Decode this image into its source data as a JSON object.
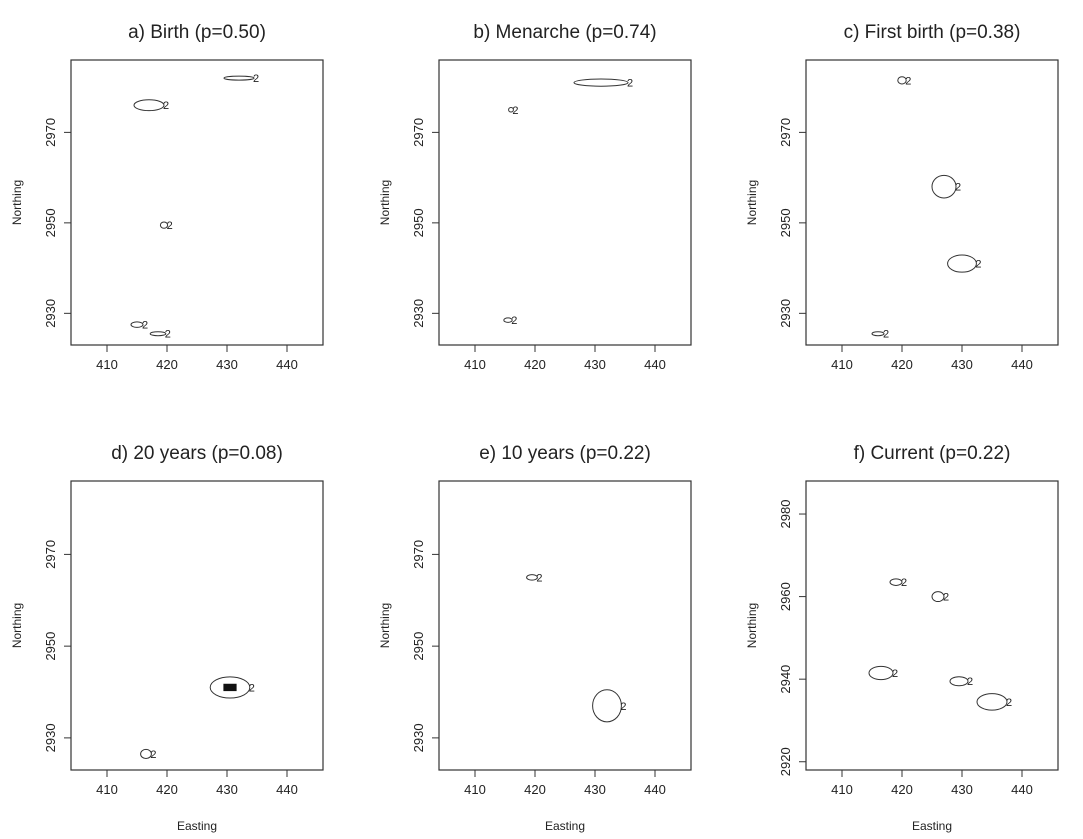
{
  "figure": {
    "background": "#ffffff",
    "line_color": "#333333"
  },
  "chart_data": [
    {
      "type": "contour",
      "title": "a) Birth (p=0.50)",
      "xlabel": "",
      "ylabel": "Northing",
      "xlim": [
        404,
        446
      ],
      "ylim": [
        2923,
        2986
      ],
      "xticks": [
        410,
        420,
        430,
        440
      ],
      "yticks": [
        2930,
        2950,
        2970
      ],
      "contour_label": "2",
      "contours": [
        {
          "center": [
            417,
            2976
          ],
          "rx": 2.5,
          "ry": 1.2,
          "fill": false
        },
        {
          "center": [
            432,
            2982
          ],
          "rx": 2.5,
          "ry": 0.4,
          "fill": false
        },
        {
          "center": [
            419.5,
            2949.5
          ],
          "rx": 0.6,
          "ry": 0.7,
          "fill": false
        },
        {
          "center": [
            415,
            2927.5
          ],
          "rx": 1.0,
          "ry": 0.6,
          "fill": false
        },
        {
          "center": [
            418.5,
            2925.5
          ],
          "rx": 1.3,
          "ry": 0.35,
          "fill": false
        }
      ]
    },
    {
      "type": "contour",
      "title": "b) Menarche (p=0.74)",
      "xlabel": "",
      "ylabel": "Northing",
      "xlim": [
        404,
        446
      ],
      "ylim": [
        2923,
        2986
      ],
      "xticks": [
        410,
        420,
        430,
        440
      ],
      "yticks": [
        2930,
        2950,
        2970
      ],
      "contour_label": "2",
      "contours": [
        {
          "center": [
            431,
            2981
          ],
          "rx": 4.5,
          "ry": 0.8,
          "fill": false
        },
        {
          "center": [
            416,
            2975
          ],
          "rx": 0.4,
          "ry": 0.5,
          "fill": false
        },
        {
          "center": [
            415.5,
            2928.5
          ],
          "rx": 0.7,
          "ry": 0.5,
          "fill": false
        }
      ]
    },
    {
      "type": "contour",
      "title": "c) First birth (p=0.38)",
      "xlabel": "",
      "ylabel": "Northing",
      "xlim": [
        404,
        446
      ],
      "ylim": [
        2923,
        2986
      ],
      "xticks": [
        410,
        420,
        430,
        440
      ],
      "yticks": [
        2930,
        2950,
        2970
      ],
      "contour_label": "2",
      "contours": [
        {
          "center": [
            420,
            2981.5
          ],
          "rx": 0.7,
          "ry": 0.8,
          "fill": false
        },
        {
          "center": [
            427,
            2958
          ],
          "rx": 2.0,
          "ry": 2.5,
          "fill": false
        },
        {
          "center": [
            430,
            2941
          ],
          "rx": 2.4,
          "ry": 1.9,
          "fill": false
        },
        {
          "center": [
            416,
            2925.5
          ],
          "rx": 1.0,
          "ry": 0.4,
          "fill": false
        }
      ]
    },
    {
      "type": "contour",
      "title": "d) 20 years (p=0.08)",
      "xlabel": "Easting",
      "ylabel": "Northing",
      "xlim": [
        404,
        446
      ],
      "ylim": [
        2923,
        2986
      ],
      "xticks": [
        410,
        420,
        430,
        440
      ],
      "yticks": [
        2930,
        2950,
        2970
      ],
      "contour_label": "2",
      "contours": [
        {
          "center": [
            430.5,
            2941
          ],
          "rx": 3.3,
          "ry": 2.3,
          "fill": false
        },
        {
          "center": [
            430.5,
            2941
          ],
          "rx": 1.1,
          "ry": 0.8,
          "fill": true
        },
        {
          "center": [
            416.5,
            2926.5
          ],
          "rx": 0.9,
          "ry": 1.0,
          "fill": false
        }
      ]
    },
    {
      "type": "contour",
      "title": "e) 10 years (p=0.22)",
      "xlabel": "Easting",
      "ylabel": "Northing",
      "xlim": [
        404,
        446
      ],
      "ylim": [
        2923,
        2986
      ],
      "xticks": [
        410,
        420,
        430,
        440
      ],
      "yticks": [
        2930,
        2950,
        2970
      ],
      "contour_label": "2",
      "contours": [
        {
          "center": [
            419.5,
            2965
          ],
          "rx": 0.9,
          "ry": 0.6,
          "fill": false
        },
        {
          "center": [
            432,
            2937
          ],
          "rx": 2.4,
          "ry": 3.5,
          "fill": false
        }
      ]
    },
    {
      "type": "contour",
      "title": "f) Current (p=0.22)",
      "xlabel": "Easting",
      "ylabel": "Northing",
      "xlim": [
        404,
        446
      ],
      "ylim": [
        2918,
        2988
      ],
      "xticks": [
        410,
        420,
        430,
        440
      ],
      "yticks": [
        2920,
        2940,
        2960,
        2980
      ],
      "contour_label": "2",
      "contours": [
        {
          "center": [
            419,
            2963.5
          ],
          "rx": 1.0,
          "ry": 0.8,
          "fill": false
        },
        {
          "center": [
            426,
            2960
          ],
          "rx": 1.0,
          "ry": 1.2,
          "fill": false
        },
        {
          "center": [
            416.5,
            2941.5
          ],
          "rx": 2.0,
          "ry": 1.6,
          "fill": false
        },
        {
          "center": [
            429.5,
            2939.5
          ],
          "rx": 1.5,
          "ry": 1.1,
          "fill": false
        },
        {
          "center": [
            435,
            2934.5
          ],
          "rx": 2.5,
          "ry": 2.0,
          "fill": false
        }
      ]
    }
  ]
}
